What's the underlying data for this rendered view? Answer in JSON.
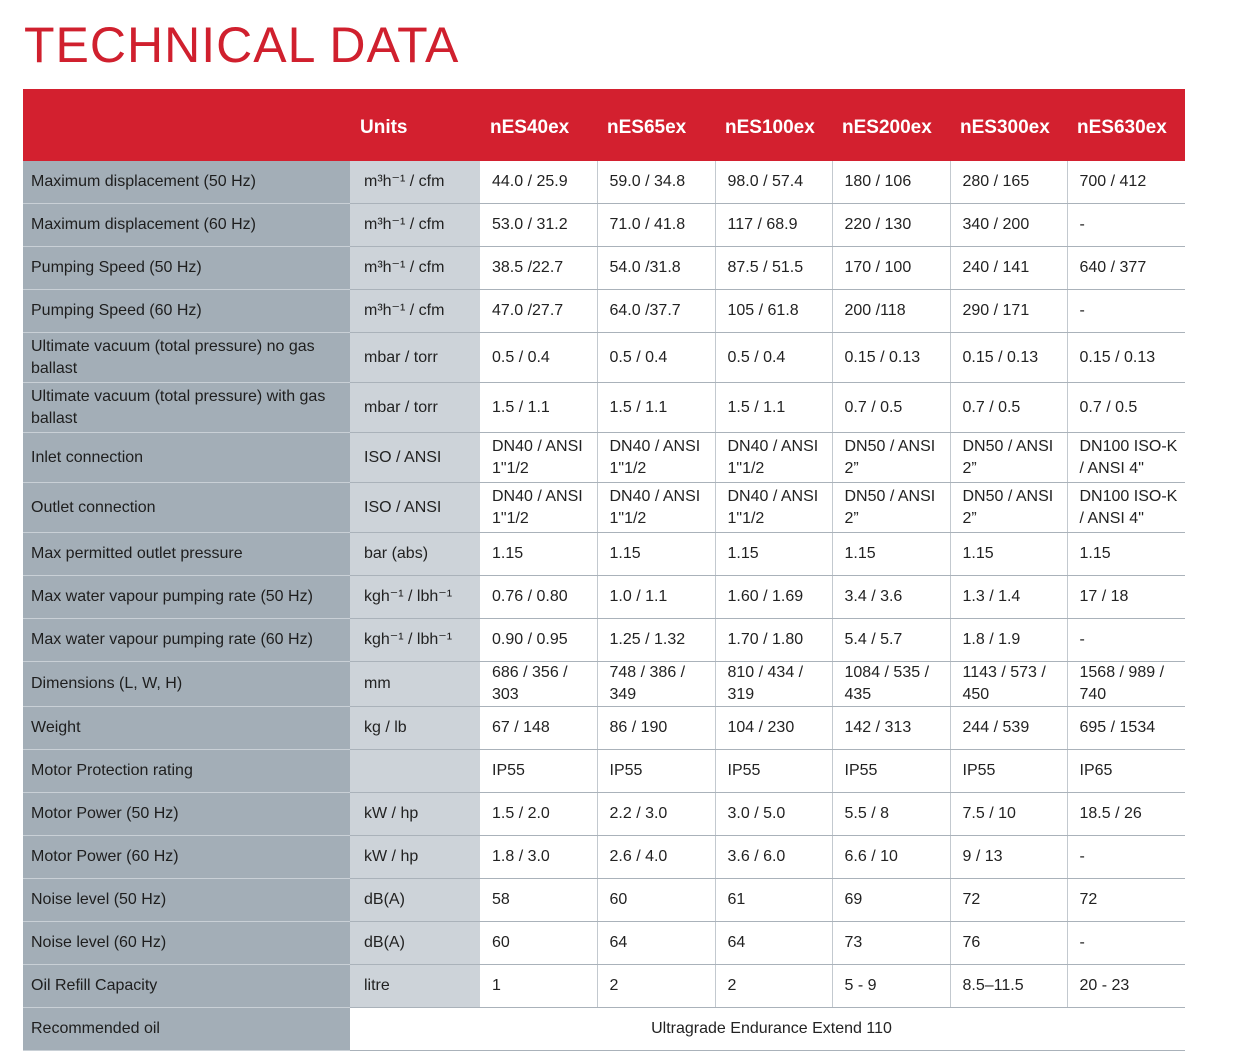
{
  "title": "TECHNICAL DATA",
  "header": {
    "units": "Units",
    "models": [
      "nES40ex",
      "nES65ex",
      "nES100ex",
      "nES200ex",
      "nES300ex",
      "nES630ex"
    ]
  },
  "rows": [
    {
      "param": "Maximum displacement (50 Hz)",
      "unit": "m³h⁻¹ / cfm",
      "values": [
        "44.0 / 25.9",
        "59.0 / 34.8",
        "98.0 / 57.4",
        "180 / 106",
        "280 / 165",
        "700 / 412"
      ]
    },
    {
      "param": "Maximum displacement (60 Hz)",
      "unit": "m³h⁻¹ / cfm",
      "values": [
        "53.0 / 31.2",
        "71.0 / 41.8",
        "117 / 68.9",
        "220 / 130",
        "340 / 200",
        "-"
      ]
    },
    {
      "param": "Pumping Speed (50 Hz)",
      "unit": "m³h⁻¹ / cfm",
      "values": [
        "38.5 /22.7",
        "54.0 /31.8",
        "87.5 / 51.5",
        "170 / 100",
        "240 / 141",
        "640 / 377"
      ]
    },
    {
      "param": "Pumping Speed (60 Hz)",
      "unit": "m³h⁻¹ / cfm",
      "values": [
        "47.0 /27.7",
        "64.0 /37.7",
        "105 / 61.8",
        "200 /118",
        "290 / 171",
        "-"
      ]
    },
    {
      "param": "Ultimate vacuum (total pressure) no gas ballast",
      "unit": "mbar / torr",
      "values": [
        "0.5 / 0.4",
        "0.5 / 0.4",
        "0.5 / 0.4",
        "0.15 / 0.13",
        "0.15 / 0.13",
        "0.15 / 0.13"
      ]
    },
    {
      "param": "Ultimate vacuum (total pressure) with gas ballast",
      "unit": "mbar / torr",
      "values": [
        "1.5 / 1.1",
        "1.5 / 1.1",
        "1.5 / 1.1",
        "0.7 / 0.5",
        "0.7 / 0.5",
        "0.7 / 0.5"
      ]
    },
    {
      "param": "Inlet connection",
      "unit": "ISO / ANSI",
      "values": [
        "DN40 / ANSI 1\"1/2",
        "DN40 / ANSI 1\"1/2",
        "DN40 / ANSI 1\"1/2",
        "DN50 / ANSI 2”",
        "DN50 / ANSI 2”",
        "DN100 ISO-K / ANSI 4\""
      ]
    },
    {
      "param": "Outlet connection",
      "unit": "ISO / ANSI",
      "values": [
        "DN40 / ANSI 1\"1/2",
        "DN40 / ANSI 1\"1/2",
        "DN40 / ANSI 1\"1/2",
        "DN50 / ANSI 2”",
        "DN50 / ANSI 2”",
        "DN100 ISO-K / ANSI 4\""
      ]
    },
    {
      "param": "Max permitted outlet pressure",
      "unit": "bar (abs)",
      "values": [
        "1.15",
        "1.15",
        "1.15",
        "1.15",
        "1.15",
        "1.15"
      ]
    },
    {
      "param": "Max water vapour pumping rate (50 Hz)",
      "unit": "kgh⁻¹ / lbh⁻¹",
      "values": [
        "0.76 / 0.80",
        "1.0 / 1.1",
        "1.60 / 1.69",
        "3.4 / 3.6",
        "1.3 / 1.4",
        "17 / 18"
      ]
    },
    {
      "param": "Max water vapour pumping rate (60 Hz)",
      "unit": "kgh⁻¹ / lbh⁻¹",
      "values": [
        "0.90 / 0.95",
        "1.25 / 1.32",
        "1.70 / 1.80",
        "5.4 / 5.7",
        "1.8 / 1.9",
        "-"
      ]
    },
    {
      "param": "Dimensions (L, W, H)",
      "unit": "mm",
      "values": [
        "686 / 356 / 303",
        "748 / 386 / 349",
        "810 / 434 / 319",
        "1084 / 535 / 435",
        "1143 / 573 / 450",
        "1568 / 989 / 740"
      ]
    },
    {
      "param": "Weight",
      "unit": "kg / lb",
      "values": [
        "67 / 148",
        "86 / 190",
        "104 / 230",
        "142 / 313",
        "244 / 539",
        "695 / 1534"
      ]
    },
    {
      "param": "Motor Protection rating",
      "unit": "",
      "values": [
        "IP55",
        "IP55",
        "IP55",
        "IP55",
        "IP55",
        "IP65"
      ]
    },
    {
      "param": "Motor Power (50 Hz)",
      "unit": "kW / hp",
      "values": [
        "1.5 / 2.0",
        "2.2 / 3.0",
        "3.0 / 5.0",
        "5.5 / 8",
        "7.5 / 10",
        "18.5 / 26"
      ]
    },
    {
      "param": "Motor Power (60 Hz)",
      "unit": "kW / hp",
      "values": [
        "1.8 / 3.0",
        "2.6 / 4.0",
        "3.6 / 6.0",
        "6.6 / 10",
        "9 / 13",
        "-"
      ]
    },
    {
      "param": "Noise level (50 Hz)",
      "unit": "dB(A)",
      "values": [
        "58",
        "60",
        "61",
        "69",
        "72",
        "72"
      ]
    },
    {
      "param": "Noise level (60 Hz)",
      "unit": "dB(A)",
      "values": [
        "60",
        "64",
        "64",
        "73",
        "76",
        "-"
      ]
    },
    {
      "param": "Oil Refill Capacity",
      "unit": "litre",
      "values": [
        "1",
        "2",
        "2",
        "5 - 9",
        "8.5–11.5",
        "20 - 23"
      ]
    }
  ],
  "recommended_oil": {
    "param": "Recommended oil",
    "value": "Ultragrade Endurance Extend 110"
  }
}
